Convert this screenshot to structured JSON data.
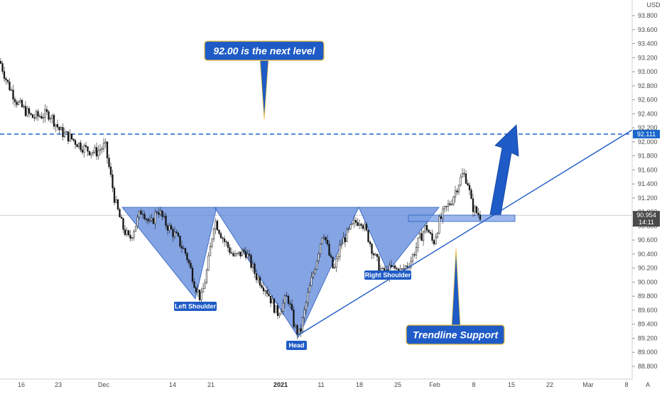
{
  "chart_data": {
    "type": "candlestick",
    "instrument_currency": "USD",
    "y_axis": {
      "ticks": [
        "93.800",
        "93.600",
        "93.400",
        "93.200",
        "93.000",
        "92.800",
        "92.600",
        "92.400",
        "92.200",
        "92.000",
        "91.800",
        "91.600",
        "91.400",
        "91.200",
        "91.000",
        "90.800",
        "90.600",
        "90.400",
        "90.200",
        "90.000",
        "89.800",
        "89.600",
        "89.400",
        "89.200",
        "89.000",
        "88.800"
      ],
      "ylim": [
        88.7,
        93.95
      ]
    },
    "x_axis": {
      "ticks": [
        {
          "label": "16",
          "bold": false
        },
        {
          "label": "23",
          "bold": false
        },
        {
          "label": "Dec",
          "bold": false
        },
        {
          "label": "14",
          "bold": false
        },
        {
          "label": "21",
          "bold": false
        },
        {
          "label": "2021",
          "bold": true
        },
        {
          "label": "11",
          "bold": false
        },
        {
          "label": "18",
          "bold": false
        },
        {
          "label": "25",
          "bold": false
        },
        {
          "label": "Feb",
          "bold": false
        },
        {
          "label": "8",
          "bold": false
        },
        {
          "label": "15",
          "bold": false
        },
        {
          "label": "22",
          "bold": false
        },
        {
          "label": "Mar",
          "bold": false
        },
        {
          "label": "8",
          "bold": false
        }
      ]
    },
    "price_path": [
      [
        0,
        93.15
      ],
      [
        10,
        92.85
      ],
      [
        25,
        92.55
      ],
      [
        45,
        92.35
      ],
      [
        70,
        92.4
      ],
      [
        85,
        92.15
      ],
      [
        100,
        92.05
      ],
      [
        120,
        91.9
      ],
      [
        135,
        91.85
      ],
      [
        148,
        91.95
      ],
      [
        155,
        91.55
      ],
      [
        162,
        91.15
      ],
      [
        172,
        90.8
      ],
      [
        182,
        90.6
      ],
      [
        200,
        91.05
      ],
      [
        212,
        90.8
      ],
      [
        222,
        91.05
      ],
      [
        232,
        90.85
      ],
      [
        248,
        90.65
      ],
      [
        262,
        90.4
      ],
      [
        275,
        89.95
      ],
      [
        283,
        89.75
      ],
      [
        292,
        90.2
      ],
      [
        302,
        90.9
      ],
      [
        315,
        90.6
      ],
      [
        330,
        90.35
      ],
      [
        345,
        90.45
      ],
      [
        360,
        90.1
      ],
      [
        375,
        89.9
      ],
      [
        390,
        89.55
      ],
      [
        405,
        89.8
      ],
      [
        415,
        89.35
      ],
      [
        422,
        89.25
      ],
      [
        432,
        89.75
      ],
      [
        445,
        90.3
      ],
      [
        455,
        90.75
      ],
      [
        463,
        90.4
      ],
      [
        470,
        90.15
      ],
      [
        480,
        90.55
      ],
      [
        490,
        90.7
      ],
      [
        500,
        90.85
      ],
      [
        508,
        90.9
      ],
      [
        518,
        90.65
      ],
      [
        528,
        90.35
      ],
      [
        540,
        90.1
      ],
      [
        552,
        90.2
      ],
      [
        565,
        90.15
      ],
      [
        578,
        90.3
      ],
      [
        590,
        90.6
      ],
      [
        600,
        90.8
      ],
      [
        610,
        90.55
      ],
      [
        618,
        90.85
      ],
      [
        625,
        91.0
      ],
      [
        635,
        91.15
      ],
      [
        645,
        91.4
      ],
      [
        652,
        91.55
      ],
      [
        658,
        91.45
      ],
      [
        664,
        91.1
      ],
      [
        670,
        91.0
      ],
      [
        676,
        90.95
      ]
    ],
    "levels": [
      {
        "name": "resistance",
        "value": 92.111,
        "label": "92.111",
        "style": "dashed",
        "color": "#1a66cc"
      },
      {
        "name": "last_price",
        "value": 90.954,
        "label": "90.954",
        "color": "#555555"
      }
    ],
    "countdown_label": "14:11",
    "annotations": {
      "top_callout": "92.00 is the next level",
      "trendline_callout": "Trendline Support",
      "left_shoulder": "Left Shoulder",
      "head": "Head",
      "right_shoulder": "Right Shoulder"
    },
    "pattern": "inverse head and shoulders",
    "colors": {
      "up": "#3a3a3a",
      "down": "#000000",
      "pattern_fill": "#5b86d9",
      "accent": "#1e5bc6",
      "callout_border": "#f0c040",
      "trendline": "#1e5bc6"
    },
    "axis_corner_label": "A"
  }
}
